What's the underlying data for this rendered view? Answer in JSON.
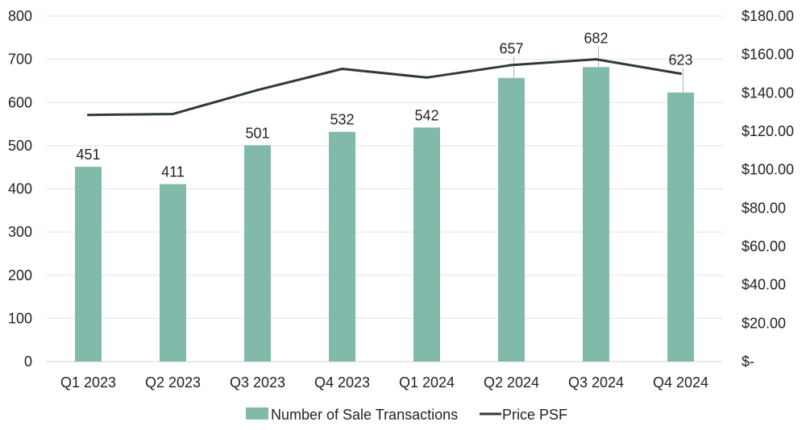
{
  "chart_data": {
    "type": "bar",
    "categories": [
      "Q1 2023",
      "Q2 2023",
      "Q3 2023",
      "Q4 2023",
      "Q1 2024",
      "Q2 2024",
      "Q3 2024",
      "Q4 2024"
    ],
    "series": [
      {
        "name": "Number of Sale Transactions",
        "type": "bar",
        "axis": "left",
        "values": [
          451,
          411,
          501,
          532,
          542,
          657,
          682,
          623
        ],
        "data_labels": [
          "451",
          "411",
          "501",
          "532",
          "542",
          "657",
          "682",
          "623"
        ],
        "color": "#81b9aa"
      },
      {
        "name": "Price PSF",
        "type": "line",
        "axis": "right",
        "values": [
          128.5,
          129,
          141.5,
          152.5,
          148,
          154.5,
          157.5,
          150
        ],
        "color": "#2f3a3a"
      }
    ],
    "y_left": {
      "ylim": [
        0,
        800
      ],
      "ticks": [
        0,
        100,
        200,
        300,
        400,
        500,
        600,
        700,
        800
      ],
      "tick_labels": [
        "0",
        "100",
        "200",
        "300",
        "400",
        "500",
        "600",
        "700",
        "800"
      ]
    },
    "y_right": {
      "ylim": [
        0,
        180
      ],
      "ticks": [
        0,
        20,
        40,
        60,
        80,
        100,
        120,
        140,
        160,
        180
      ],
      "tick_labels": [
        "$-",
        "$20.00",
        "$40.00",
        "$60.00",
        "$80.00",
        "$100.00",
        "$120.00",
        "$140.00",
        "$160.00",
        "$180.00"
      ]
    },
    "title": "",
    "xlabel": "",
    "ylabel": "",
    "grid": true,
    "legend_position": "bottom-center",
    "colors": {
      "grid": "#e3e3e3",
      "axis": "#d2d2d2",
      "text": "#222222",
      "leader": "#b0b0b0"
    }
  }
}
